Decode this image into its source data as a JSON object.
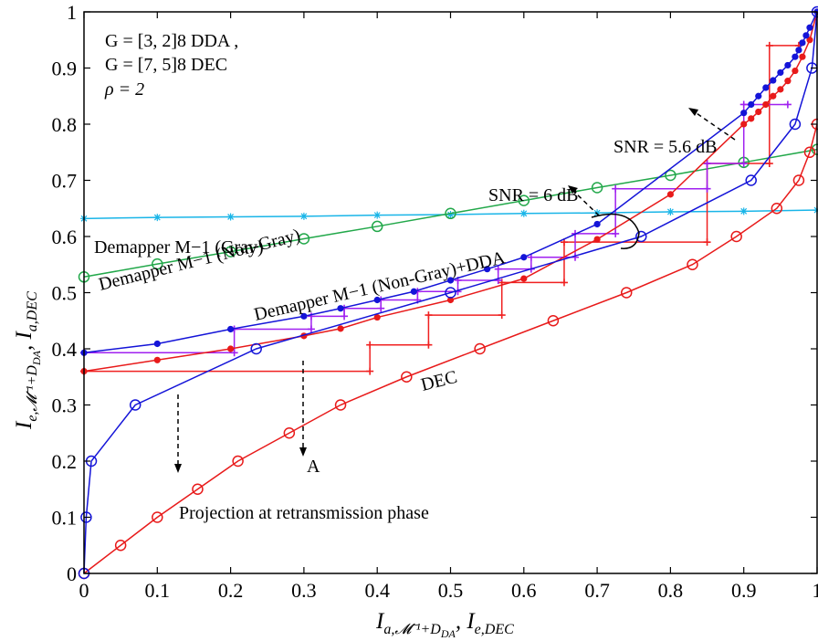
{
  "chart_data": {
    "type": "line",
    "xlabel": "I_{a,M^{-1}+D_DA}, I_{e,DEC}",
    "ylabel": "I_{e,M^{-1}+D_DA}, I_{a,DEC}",
    "xlim": [
      0,
      1
    ],
    "ylim": [
      0,
      1
    ],
    "x_ticks": [
      "0",
      "0.1",
      "0.2",
      "0.3",
      "0.4",
      "0.5",
      "0.6",
      "0.7",
      "0.8",
      "0.9",
      "1"
    ],
    "y_ticks": [
      "0",
      "0.1",
      "0.2",
      "0.3",
      "0.4",
      "0.5",
      "0.6",
      "0.7",
      "0.8",
      "0.9",
      "1"
    ],
    "grid": false,
    "colors": {
      "gray": "#19b5e8",
      "nongray": "#22a84a",
      "blue": "#1414d8",
      "red": "#e81a1a",
      "magenta": "#a020f0",
      "red_traj": "#f02020"
    },
    "series": [
      {
        "id": "gray",
        "marker": "star",
        "x": [
          0,
          0.1,
          0.2,
          0.3,
          0.4,
          0.5,
          0.6,
          0.7,
          0.8,
          0.9,
          1.0
        ],
        "y": [
          0.632,
          0.634,
          0.635,
          0.636,
          0.638,
          0.639,
          0.641,
          0.642,
          0.644,
          0.645,
          0.647
        ]
      },
      {
        "id": "nongray",
        "marker": "circle",
        "x": [
          0,
          0.1,
          0.2,
          0.3,
          0.4,
          0.5,
          0.6,
          0.7,
          0.8,
          0.9,
          1.0
        ],
        "y": [
          0.528,
          0.551,
          0.573,
          0.596,
          0.618,
          0.641,
          0.664,
          0.687,
          0.709,
          0.732,
          0.755
        ]
      },
      {
        "id": "blue_open",
        "marker": "circle",
        "x": [
          0,
          0.003,
          0.01,
          0.07,
          0.235,
          0.5,
          0.76,
          0.91,
          0.97,
          0.993,
          1.0
        ],
        "y": [
          0,
          0.1,
          0.2,
          0.3,
          0.4,
          0.5,
          0.6,
          0.7,
          0.8,
          0.9,
          1.0
        ]
      },
      {
        "id": "dec",
        "marker": "circle",
        "x": [
          0,
          0.05,
          0.1,
          0.155,
          0.21,
          0.28,
          0.35,
          0.44,
          0.54,
          0.64,
          0.74,
          0.83,
          0.89,
          0.945,
          0.975,
          0.99,
          1.0
        ],
        "y": [
          0,
          0.05,
          0.1,
          0.15,
          0.2,
          0.25,
          0.3,
          0.35,
          0.4,
          0.45,
          0.5,
          0.55,
          0.6,
          0.65,
          0.7,
          0.75,
          0.8
        ]
      },
      {
        "id": "blue_filled",
        "marker": "dot",
        "x": [
          0,
          0.1,
          0.2,
          0.3,
          0.35,
          0.4,
          0.45,
          0.5,
          0.55,
          0.6,
          0.7,
          0.9,
          0.91,
          0.92,
          0.93,
          0.94,
          0.95,
          0.96,
          0.97,
          0.975,
          0.98,
          0.985,
          0.99,
          1.0
        ],
        "y": [
          0.393,
          0.409,
          0.435,
          0.458,
          0.472,
          0.487,
          0.502,
          0.522,
          0.542,
          0.563,
          0.622,
          0.82,
          0.835,
          0.85,
          0.865,
          0.878,
          0.892,
          0.905,
          0.92,
          0.932,
          0.945,
          0.958,
          0.972,
          1.0
        ]
      },
      {
        "id": "red_filled",
        "marker": "dot",
        "x": [
          0,
          0.1,
          0.2,
          0.3,
          0.35,
          0.4,
          0.5,
          0.6,
          0.7,
          0.8,
          0.9,
          0.91,
          0.92,
          0.93,
          0.94,
          0.95,
          0.96,
          0.97,
          0.98,
          0.99,
          1.0
        ],
        "y": [
          0.36,
          0.38,
          0.4,
          0.423,
          0.436,
          0.456,
          0.487,
          0.525,
          0.595,
          0.675,
          0.8,
          0.81,
          0.822,
          0.835,
          0.85,
          0.862,
          0.877,
          0.895,
          0.92,
          0.95,
          1.0
        ]
      },
      {
        "id": "magenta_traj",
        "marker": "plus",
        "points": [
          [
            0.0,
            0.393
          ],
          [
            0.205,
            0.393
          ],
          [
            0.205,
            0.435
          ],
          [
            0.31,
            0.435
          ],
          [
            0.31,
            0.458
          ],
          [
            0.355,
            0.458
          ],
          [
            0.355,
            0.472
          ],
          [
            0.405,
            0.472
          ],
          [
            0.405,
            0.487
          ],
          [
            0.455,
            0.487
          ],
          [
            0.455,
            0.502
          ],
          [
            0.51,
            0.502
          ],
          [
            0.51,
            0.522
          ],
          [
            0.565,
            0.522
          ],
          [
            0.565,
            0.542
          ],
          [
            0.61,
            0.542
          ],
          [
            0.61,
            0.563
          ],
          [
            0.67,
            0.563
          ],
          [
            0.67,
            0.605
          ],
          [
            0.725,
            0.605
          ],
          [
            0.725,
            0.685
          ],
          [
            0.85,
            0.685
          ],
          [
            0.85,
            0.73
          ],
          [
            0.9,
            0.73
          ],
          [
            0.9,
            0.835
          ],
          [
            0.96,
            0.835
          ]
        ]
      },
      {
        "id": "red_traj",
        "marker": "plus",
        "points": [
          [
            0.0,
            0.36
          ],
          [
            0.39,
            0.36
          ],
          [
            0.39,
            0.407
          ],
          [
            0.47,
            0.407
          ],
          [
            0.47,
            0.46
          ],
          [
            0.57,
            0.46
          ],
          [
            0.57,
            0.518
          ],
          [
            0.655,
            0.518
          ],
          [
            0.655,
            0.59
          ],
          [
            0.85,
            0.59
          ],
          [
            0.85,
            0.73
          ],
          [
            0.935,
            0.73
          ],
          [
            0.935,
            0.94
          ],
          [
            0.975,
            0.94
          ]
        ]
      }
    ],
    "annotations": {
      "params_line1": "G = [3, 2]8  DDA ,",
      "params_line2": "G = [7, 5]8  DEC",
      "params_line3": "ρ = 2",
      "snr_56": "SNR = 5.6 dB",
      "snr_6": "SNR = 6 dB",
      "gray_label": "Demapper M−1 (Gray)",
      "nongray_label": "Demapper M−1 (Non-Gray)",
      "dda_label": "Demapper M−1 (Non-Gray)+DDA",
      "dec_label": "DEC",
      "a_label": "A",
      "projection_label": "Projection at retransmission phase"
    }
  }
}
